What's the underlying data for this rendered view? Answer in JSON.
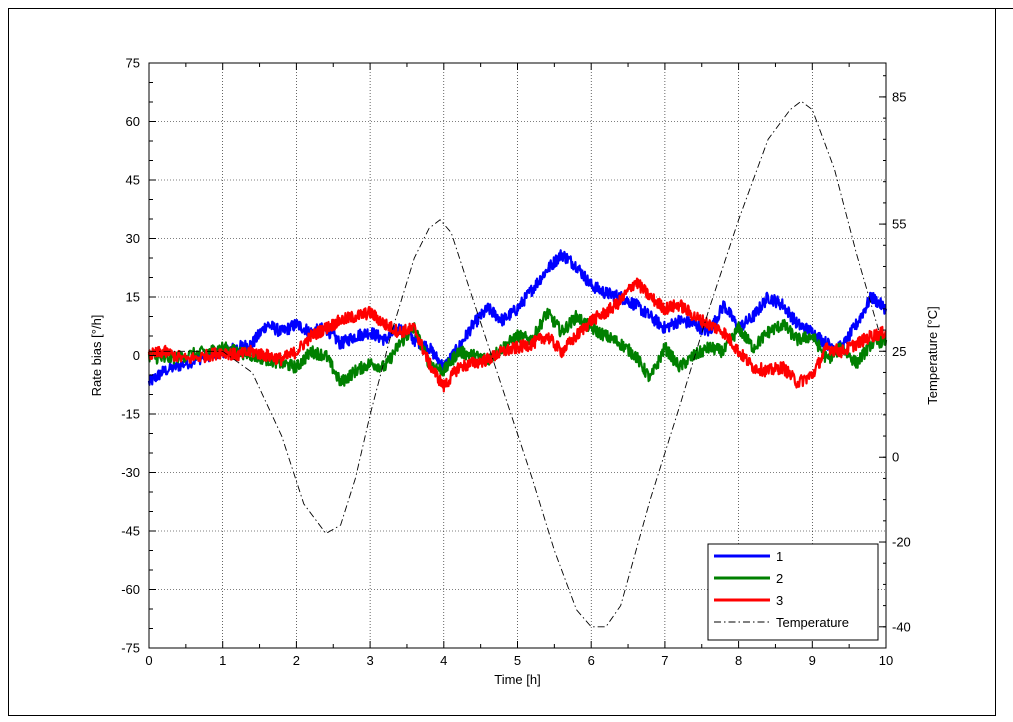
{
  "chart_data": {
    "type": "line",
    "xlabel": "Time [h]",
    "ylabel": "Rate bias [°/h]",
    "y2label": "Temperature [°C]",
    "xlim": [
      0,
      10
    ],
    "ylim": [
      -75,
      75
    ],
    "y2lim": [
      -45,
      93
    ],
    "xticks": [
      0,
      1,
      2,
      3,
      4,
      5,
      6,
      7,
      8,
      9,
      10
    ],
    "yticks": [
      -75,
      -60,
      -45,
      -30,
      -15,
      0,
      15,
      30,
      45,
      60,
      75
    ],
    "y2ticks": [
      -40,
      -20,
      0,
      25,
      55,
      85
    ],
    "grid": true,
    "legend_position": "bottom-right",
    "series": [
      {
        "name": "1",
        "axis": "left",
        "color": "#0000ff",
        "style": "solid",
        "x": [
          0,
          0.2,
          0.5,
          0.8,
          1.0,
          1.2,
          1.4,
          1.6,
          1.8,
          2.0,
          2.2,
          2.4,
          2.6,
          2.8,
          3.0,
          3.2,
          3.4,
          3.6,
          3.8,
          4.0,
          4.2,
          4.4,
          4.6,
          4.8,
          5.0,
          5.2,
          5.4,
          5.6,
          5.8,
          6.0,
          6.2,
          6.4,
          6.6,
          6.8,
          7.0,
          7.2,
          7.4,
          7.6,
          7.8,
          8.0,
          8.2,
          8.4,
          8.6,
          8.8,
          9.0,
          9.2,
          9.4,
          9.6,
          9.8,
          10.0
        ],
        "values": [
          -7,
          -4,
          -2,
          0,
          1,
          2,
          3,
          8,
          6,
          8,
          6,
          7,
          3,
          5,
          6,
          4,
          7,
          4,
          2,
          -3,
          2,
          8,
          12,
          9,
          12,
          17,
          22,
          26,
          23,
          18,
          16,
          15,
          13,
          10,
          7,
          9,
          8,
          6,
          13,
          7,
          10,
          15,
          13,
          8,
          6,
          3,
          2,
          8,
          15,
          12
        ]
      },
      {
        "name": "2",
        "axis": "left",
        "color": "#008000",
        "style": "solid",
        "x": [
          0,
          0.2,
          0.5,
          0.8,
          1.0,
          1.2,
          1.4,
          1.6,
          1.8,
          2.0,
          2.2,
          2.4,
          2.6,
          2.8,
          3.0,
          3.2,
          3.4,
          3.6,
          3.8,
          4.0,
          4.2,
          4.4,
          4.6,
          4.8,
          5.0,
          5.2,
          5.4,
          5.6,
          5.8,
          6.0,
          6.2,
          6.4,
          6.6,
          6.8,
          7.0,
          7.2,
          7.4,
          7.6,
          7.8,
          8.0,
          8.2,
          8.4,
          8.6,
          8.8,
          9.0,
          9.2,
          9.4,
          9.6,
          9.8,
          10.0
        ],
        "values": [
          0,
          -1,
          0,
          1,
          2,
          1,
          0,
          -1,
          -2,
          -3,
          1,
          0,
          -7,
          -4,
          -2,
          -3,
          3,
          7,
          -2,
          -4,
          1,
          0,
          -1,
          2,
          5,
          4,
          11,
          6,
          10,
          7,
          5,
          3,
          0,
          -6,
          2,
          -3,
          0,
          2,
          1,
          7,
          2,
          6,
          8,
          4,
          5,
          -1,
          2,
          -2,
          3,
          4
        ]
      },
      {
        "name": "3",
        "axis": "left",
        "color": "#ff0000",
        "style": "solid",
        "x": [
          0,
          0.2,
          0.5,
          0.8,
          1.0,
          1.2,
          1.4,
          1.6,
          1.8,
          2.0,
          2.2,
          2.4,
          2.6,
          2.8,
          3.0,
          3.2,
          3.4,
          3.6,
          3.8,
          4.0,
          4.2,
          4.4,
          4.6,
          4.8,
          5.0,
          5.2,
          5.4,
          5.6,
          5.8,
          6.0,
          6.2,
          6.4,
          6.6,
          6.8,
          7.0,
          7.2,
          7.4,
          7.6,
          7.8,
          8.0,
          8.2,
          8.4,
          8.6,
          8.8,
          9.0,
          9.2,
          9.4,
          9.6,
          9.8,
          10.0
        ],
        "values": [
          0,
          1,
          -1,
          0,
          1,
          0,
          1,
          0,
          -1,
          1,
          5,
          7,
          9,
          10,
          11,
          8,
          6,
          7,
          -2,
          -8,
          -3,
          -2,
          -1,
          1,
          2,
          3,
          5,
          1,
          5,
          9,
          11,
          14,
          19,
          15,
          12,
          13,
          10,
          8,
          6,
          1,
          -3,
          -4,
          -3,
          -7,
          -5,
          2,
          1,
          3,
          5,
          6
        ]
      },
      {
        "name": "Temperature",
        "axis": "right",
        "color": "#000000",
        "style": "dashdot",
        "x": [
          0,
          0.5,
          0.8,
          1.0,
          1.4,
          1.8,
          2.1,
          2.4,
          2.6,
          2.8,
          3.0,
          3.3,
          3.6,
          3.8,
          3.95,
          4.1,
          4.4,
          4.8,
          5.2,
          5.5,
          5.8,
          6.0,
          6.2,
          6.4,
          6.8,
          7.2,
          7.6,
          8.0,
          8.4,
          8.7,
          8.85,
          9.0,
          9.3,
          9.6,
          9.9
        ],
        "values": [
          25,
          25,
          25,
          25,
          20,
          5,
          -11,
          -18,
          -16,
          -5,
          10,
          30,
          47,
          54,
          56,
          53,
          37,
          16,
          -5,
          -22,
          -36,
          -40,
          -40,
          -35,
          -10,
          12,
          35,
          56,
          75,
          82,
          84,
          82,
          68,
          48,
          30
        ]
      }
    ]
  }
}
